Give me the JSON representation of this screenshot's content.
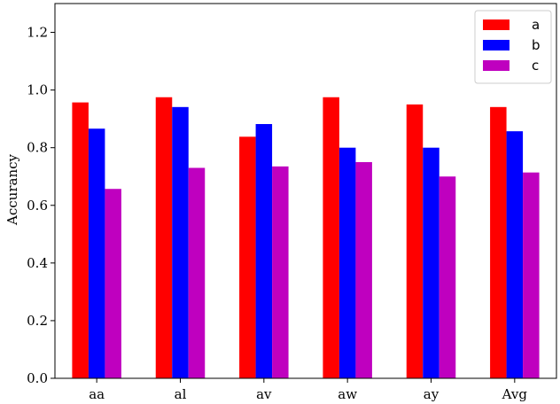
{
  "chart_data": {
    "type": "bar",
    "title": "",
    "xlabel": "",
    "ylabel": "Accurancy",
    "categories": [
      "aa",
      "al",
      "av",
      "aw",
      "ay",
      "Avg"
    ],
    "series": [
      {
        "name": "a",
        "color": "#ff0000",
        "values": [
          0.957,
          0.975,
          0.838,
          0.975,
          0.95,
          0.941
        ]
      },
      {
        "name": "b",
        "color": "#0000ff",
        "values": [
          0.866,
          0.941,
          0.882,
          0.8,
          0.8,
          0.857
        ]
      },
      {
        "name": "c",
        "color": "#bf00bf",
        "values": [
          0.657,
          0.73,
          0.735,
          0.75,
          0.7,
          0.714
        ]
      }
    ],
    "ylim": [
      0.0,
      1.3
    ],
    "yticks": [
      "0.0",
      "0.2",
      "0.4",
      "0.6",
      "0.8",
      "1.0",
      "1.2"
    ],
    "grid": false,
    "legend_position": "top-right"
  }
}
